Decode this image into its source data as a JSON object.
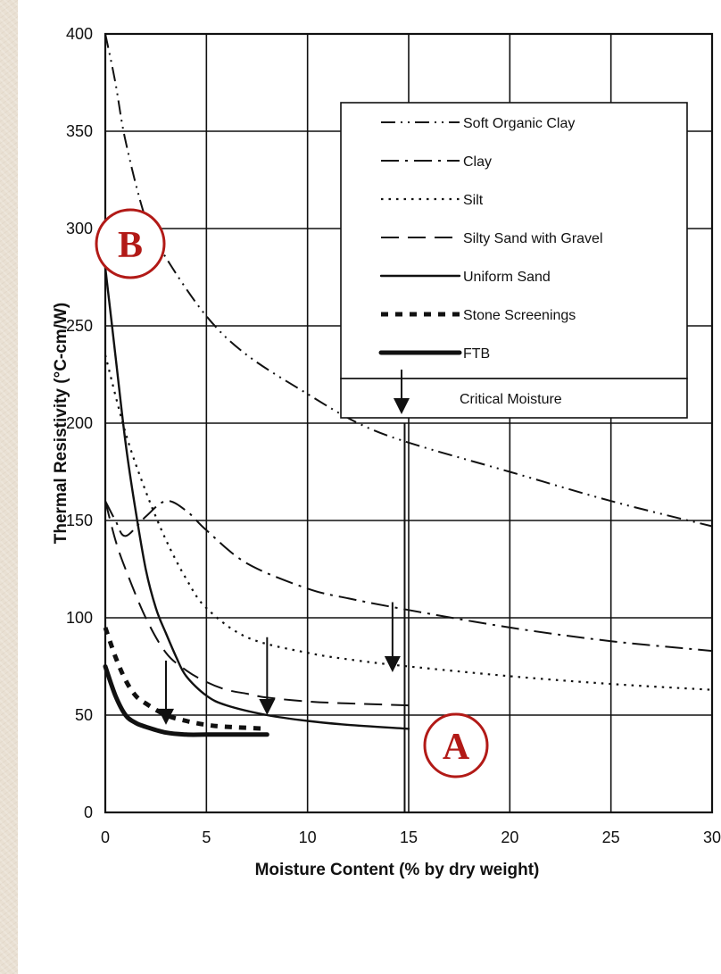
{
  "chart_data": {
    "type": "line",
    "title": "",
    "xlabel": "Moisture Content (% by dry weight)",
    "ylabel": "Thermal Resistivity (°C-cm/W)",
    "xlim": [
      0,
      30
    ],
    "ylim": [
      0,
      400
    ],
    "x_ticks": [
      "0",
      "5",
      "10",
      "15",
      "20",
      "25",
      "30"
    ],
    "y_ticks": [
      "0",
      "50",
      "100",
      "150",
      "200",
      "250",
      "300",
      "350",
      "400"
    ],
    "grid": true,
    "legend_position": "top-right",
    "series": [
      {
        "name": "Soft Organic Clay",
        "style": "dash-dot-dot",
        "x": [
          0,
          0.5,
          1,
          2,
          3,
          5,
          7,
          10,
          12.5,
          15,
          20,
          25,
          30
        ],
        "y": [
          400,
          375,
          345,
          305,
          285,
          255,
          235,
          215,
          200,
          190,
          175,
          160,
          147
        ]
      },
      {
        "name": "Clay",
        "style": "dash-dot",
        "x": [
          0,
          0.5,
          1,
          2,
          3,
          4,
          5,
          7,
          10,
          12,
          15,
          20,
          25,
          30
        ],
        "y": [
          160,
          150,
          142,
          152,
          160,
          155,
          145,
          128,
          115,
          110,
          104,
          95,
          88,
          83
        ]
      },
      {
        "name": "Silt",
        "style": "dotted",
        "x": [
          0,
          1,
          2,
          3,
          4,
          5,
          7,
          10,
          12.5,
          15,
          20,
          25,
          30
        ],
        "y": [
          235,
          195,
          165,
          140,
          120,
          105,
          90,
          82,
          78,
          75,
          70,
          66,
          63
        ]
      },
      {
        "name": "Silty Sand with Gravel",
        "style": "long-dash",
        "x": [
          0,
          0.5,
          1,
          2,
          3,
          4,
          5,
          6,
          7,
          8,
          10,
          12,
          15
        ],
        "y": [
          160,
          140,
          125,
          100,
          82,
          73,
          67,
          63,
          61,
          59,
          57,
          56,
          55
        ]
      },
      {
        "name": "Uniform Sand",
        "style": "solid",
        "x": [
          0,
          0.5,
          1,
          1.5,
          2,
          2.5,
          3,
          3.5,
          4,
          5,
          6,
          8,
          10,
          12,
          15
        ],
        "y": [
          280,
          235,
          190,
          155,
          125,
          105,
          92,
          80,
          70,
          60,
          55,
          50,
          47,
          45,
          43
        ]
      },
      {
        "name": "Stone Screenings",
        "style": "square-dash",
        "x": [
          0,
          0.5,
          1,
          1.5,
          2,
          3,
          4,
          5,
          6,
          8
        ],
        "y": [
          95,
          80,
          68,
          60,
          56,
          50,
          47,
          45,
          44,
          43
        ]
      },
      {
        "name": "FTB",
        "style": "thick-solid",
        "x": [
          0,
          0.5,
          1,
          1.5,
          2,
          3,
          4,
          5,
          6,
          7,
          8
        ],
        "y": [
          75,
          60,
          50,
          46,
          44,
          41,
          40,
          40,
          40,
          40,
          40
        ]
      }
    ],
    "critical_moisture_label": "Critical Moisture",
    "critical_moisture_x": [
      3,
      8,
      14.2,
      14.8
    ]
  },
  "badges": {
    "a": "A",
    "b": "B"
  },
  "colors": {
    "badge_ring": "#b21a17",
    "badge_text": "#b21a17",
    "ink": "#111111",
    "background": "#e9e0d3"
  }
}
